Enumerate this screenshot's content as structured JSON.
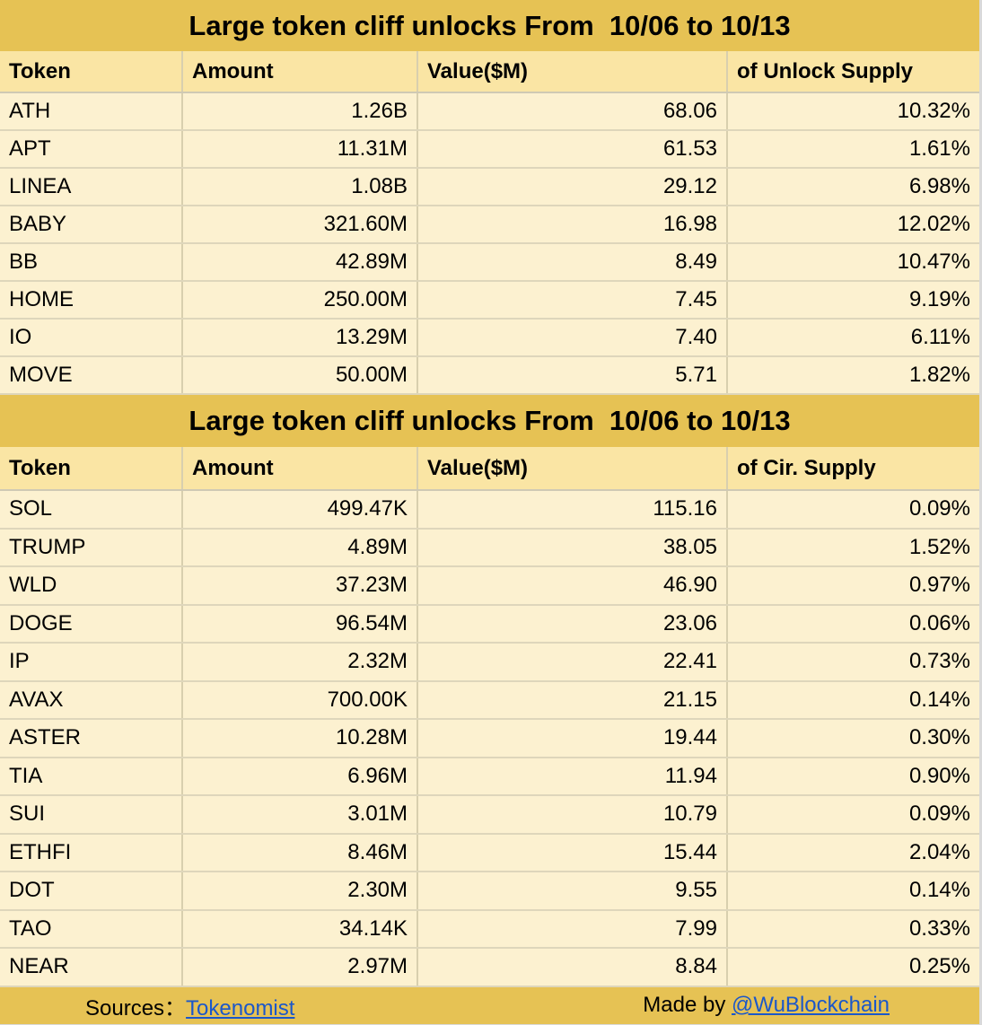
{
  "colors": {
    "band_gold": "#e6c254",
    "header_bg": "#fae5a4",
    "row_bg": "#fcf1d0",
    "gridline": "#d8cfae",
    "link_blue": "#1b57ca",
    "text": "#000000"
  },
  "chart_data": [
    {
      "type": "table",
      "title": "Large token cliff unlocks From  10/06 to 10/13",
      "columns": [
        "Token",
        "Amount",
        "Value($M)",
        "of Unlock Supply"
      ],
      "rows": [
        [
          "ATH",
          "1.26B",
          "68.06",
          "10.32%"
        ],
        [
          "APT",
          "11.31M",
          "61.53",
          "1.61%"
        ],
        [
          "LINEA",
          "1.08B",
          "29.12",
          "6.98%"
        ],
        [
          "BABY",
          "321.60M",
          "16.98",
          "12.02%"
        ],
        [
          "BB",
          "42.89M",
          "8.49",
          "10.47%"
        ],
        [
          "HOME",
          "250.00M",
          "7.45",
          "9.19%"
        ],
        [
          "IO",
          "13.29M",
          "7.40",
          "6.11%"
        ],
        [
          "MOVE",
          "50.00M",
          "5.71",
          "1.82%"
        ]
      ]
    },
    {
      "type": "table",
      "title": "Large token cliff unlocks From  10/06 to 10/13",
      "columns": [
        "Token",
        "Amount",
        "Value($M)",
        "of Cir. Supply"
      ],
      "rows": [
        [
          "SOL",
          "499.47K",
          "115.16",
          "0.09%"
        ],
        [
          "TRUMP",
          "4.89M",
          "38.05",
          "1.52%"
        ],
        [
          "WLD",
          "37.23M",
          "46.90",
          "0.97%"
        ],
        [
          "DOGE",
          "96.54M",
          "23.06",
          "0.06%"
        ],
        [
          "IP",
          "2.32M",
          "22.41",
          "0.73%"
        ],
        [
          "AVAX",
          "700.00K",
          "21.15",
          "0.14%"
        ],
        [
          "ASTER",
          "10.28M",
          "19.44",
          "0.30%"
        ],
        [
          "TIA",
          "6.96M",
          "11.94",
          "0.90%"
        ],
        [
          "SUI",
          "3.01M",
          "10.79",
          "0.09%"
        ],
        [
          "ETHFI",
          "8.46M",
          "15.44",
          "2.04%"
        ],
        [
          "DOT",
          "2.30M",
          "9.55",
          "0.14%"
        ],
        [
          "TAO",
          "34.14K",
          "7.99",
          "0.33%"
        ],
        [
          "NEAR",
          "2.97M",
          "8.84",
          "0.25%"
        ]
      ]
    }
  ],
  "footer": {
    "sources_label": "Sources：",
    "sources_link": "Tokenomist",
    "made_by_label": "Made by ",
    "made_by_link": "@WuBlockchain"
  }
}
